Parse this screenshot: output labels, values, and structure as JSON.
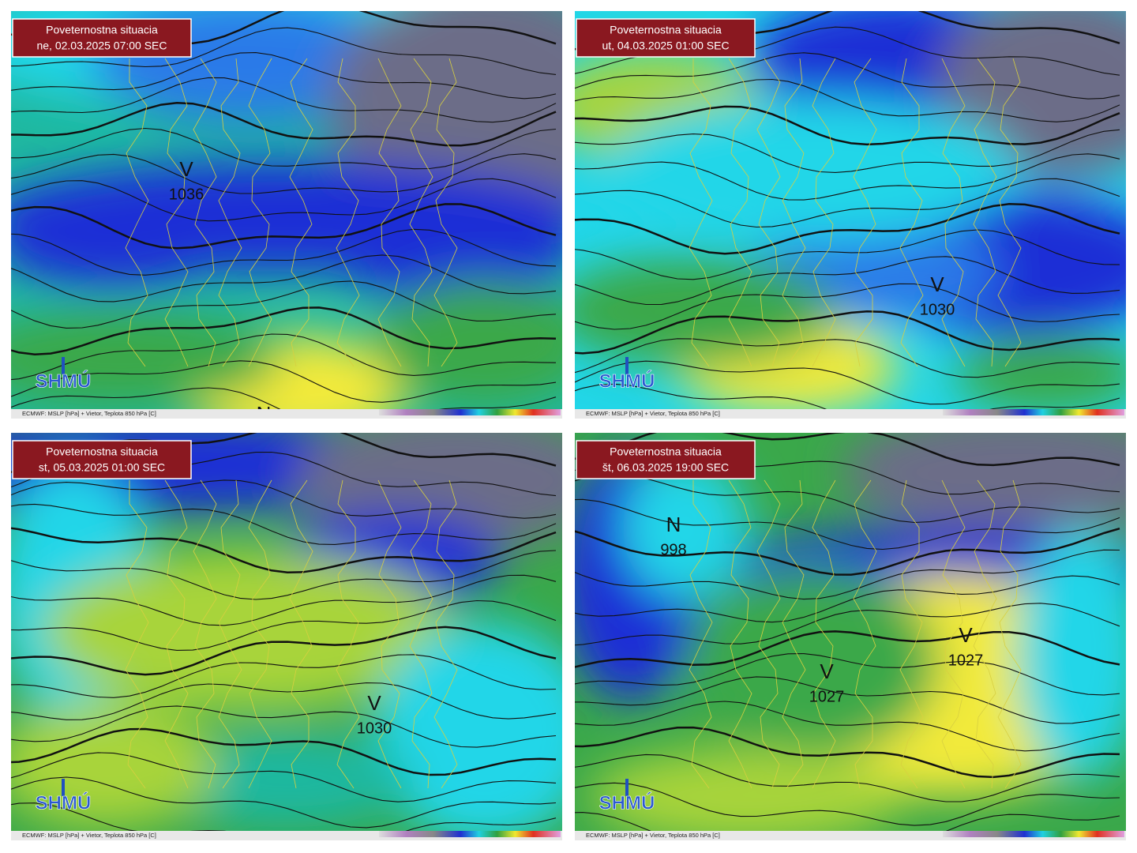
{
  "panels": [
    {
      "title": "Poveternostna situacia",
      "date": "ne, 02.03.2025 07:00 SEC",
      "logo": "SHMÚ",
      "footer": "ECMWF: MSLP [hPa] + Vietor, Teplota 850 hPa [C]",
      "centers": [
        {
          "symbol": "V",
          "pressure": "1036"
        },
        {
          "symbol": "N",
          "pressure": null
        }
      ]
    },
    {
      "title": "Poveternostna situacia",
      "date": "ut, 04.03.2025 01:00 SEC",
      "logo": "SHMÚ",
      "footer": "ECMWF: MSLP [hPa] + Vietor, Teplota 850 hPa [C]",
      "centers": [
        {
          "symbol": "V",
          "pressure": "1030"
        }
      ]
    },
    {
      "title": "Poveternostna situacia",
      "date": "st, 05.03.2025 01:00 SEC",
      "logo": "SHMÚ",
      "footer": "ECMWF: MSLP [hPa] + Vietor, Teplota 850 hPa [C]",
      "centers": [
        {
          "symbol": "V",
          "pressure": "1030"
        }
      ]
    },
    {
      "title": "Poveternostna situacia",
      "date": "št, 06.03.2025 19:00 SEC",
      "logo": "SHMÚ",
      "footer": "ECMWF: MSLP [hPa] + Vietor, Teplota 850 hPa [C]",
      "centers": [
        {
          "symbol": "N",
          "pressure": "998"
        },
        {
          "symbol": "V",
          "pressure": "1027"
        },
        {
          "symbol": "V",
          "pressure": "1027"
        }
      ]
    }
  ]
}
